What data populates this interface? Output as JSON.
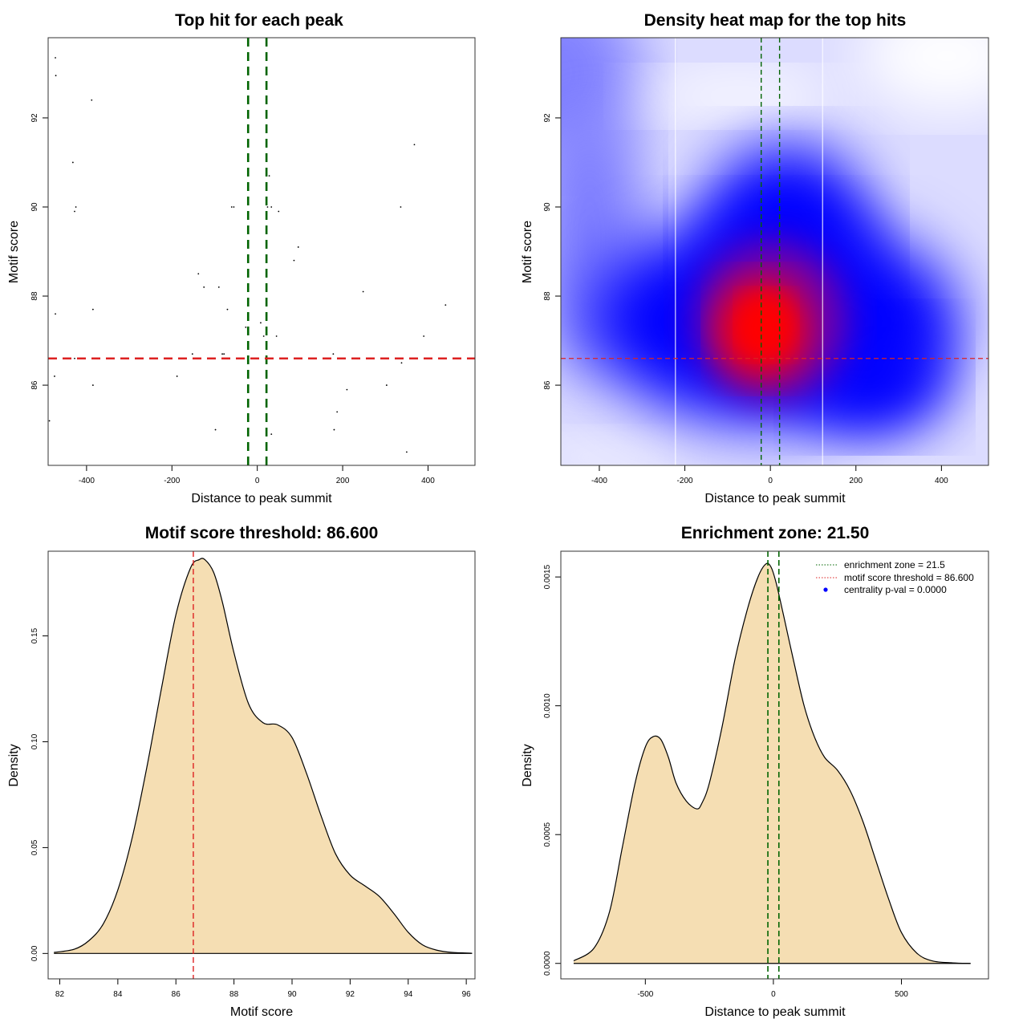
{
  "chart_data": [
    {
      "id": "scatter",
      "type": "scatter",
      "title": "Top hit for each peak",
      "xlabel": "Distance to peak summit",
      "ylabel": "Motif score",
      "xlim": [
        -490,
        510
      ],
      "ylim": [
        84.2,
        93.8
      ],
      "xticks": [
        -400,
        -200,
        0,
        200,
        400
      ],
      "yticks": [
        86,
        88,
        90,
        92
      ],
      "grid": false,
      "enrichment_zone": 21.5,
      "threshold": 86.6,
      "zone_color": "#006400",
      "threshold_color": "#dd2222",
      "points": [
        [
          -473,
          93.35
        ],
        [
          -472,
          92.95
        ],
        [
          -388,
          92.4
        ],
        [
          -432,
          91.0
        ],
        [
          -428,
          89.9
        ],
        [
          -425,
          90.0
        ],
        [
          -473,
          87.6
        ],
        [
          -385,
          87.7
        ],
        [
          -428,
          86.6
        ],
        [
          -475,
          86.2
        ],
        [
          -385,
          86.0
        ],
        [
          -487,
          85.2
        ],
        [
          -138,
          88.5
        ],
        [
          -125,
          88.2
        ],
        [
          -90,
          88.2
        ],
        [
          -70,
          87.7
        ],
        [
          -27,
          87.3
        ],
        [
          -152,
          86.7
        ],
        [
          -82,
          86.7
        ],
        [
          -78,
          86.7
        ],
        [
          -188,
          86.2
        ],
        [
          -98,
          85.0
        ],
        [
          -60,
          90.0
        ],
        [
          -55,
          90.0
        ],
        [
          28,
          90.7
        ],
        [
          24,
          90.0
        ],
        [
          33,
          90.0
        ],
        [
          50,
          89.9
        ],
        [
          96,
          89.1
        ],
        [
          86,
          88.8
        ],
        [
          8,
          87.4
        ],
        [
          15,
          87.1
        ],
        [
          45,
          87.1
        ],
        [
          22,
          86.2
        ],
        [
          33,
          84.9
        ],
        [
          178,
          86.7
        ],
        [
          248,
          88.1
        ],
        [
          210,
          85.9
        ],
        [
          187,
          85.4
        ],
        [
          180,
          85.0
        ],
        [
          303,
          86.0
        ],
        [
          338,
          86.5
        ],
        [
          336,
          90.0
        ],
        [
          368,
          91.4
        ],
        [
          390,
          87.1
        ],
        [
          441,
          87.8
        ],
        [
          350,
          84.5
        ]
      ]
    },
    {
      "id": "heatmap",
      "type": "heatmap",
      "title": "Density heat map for the top hits",
      "xlabel": "Distance to peak summit",
      "ylabel": "Motif score",
      "xlim": [
        -490,
        510
      ],
      "ylim": [
        84.2,
        93.8
      ],
      "xticks": [
        -400,
        -200,
        0,
        200,
        400
      ],
      "yticks": [
        86,
        88,
        90,
        92
      ],
      "enrichment_zone": 21.5,
      "threshold": 86.6,
      "white_lines_x": [
        -222,
        122
      ],
      "colormap": [
        "#ffffff",
        "#0000ff",
        "#ff0000"
      ],
      "peak": {
        "x": -25,
        "y": 87.3
      }
    },
    {
      "id": "score-density",
      "type": "area",
      "title": "Motif score threshold: 86.600",
      "xlabel": "Motif score",
      "ylabel": "Density",
      "xlim": [
        81.6,
        96.3
      ],
      "ylim": [
        -0.012,
        0.19
      ],
      "xticks": [
        82,
        84,
        86,
        88,
        90,
        92,
        94,
        96
      ],
      "yticks": [
        0.0,
        0.05,
        0.1,
        0.15
      ],
      "ytick_labels": [
        "0.00",
        "0.05",
        "0.10",
        "0.15"
      ],
      "fill_color": "#f5deb3",
      "threshold": 86.6,
      "threshold_color": "#dd2222",
      "x": [
        81.8,
        82.5,
        83.0,
        83.5,
        84.0,
        84.5,
        85.0,
        85.5,
        86.0,
        86.5,
        86.8,
        87.0,
        87.3,
        87.6,
        88.0,
        88.5,
        89.0,
        89.5,
        90.0,
        90.5,
        91.0,
        91.5,
        92.0,
        92.5,
        93.0,
        93.5,
        94.0,
        94.5,
        95.0,
        95.5,
        96.2
      ],
      "y": [
        0.0005,
        0.002,
        0.006,
        0.014,
        0.03,
        0.055,
        0.088,
        0.125,
        0.16,
        0.182,
        0.186,
        0.186,
        0.18,
        0.166,
        0.142,
        0.118,
        0.109,
        0.108,
        0.102,
        0.085,
        0.065,
        0.047,
        0.037,
        0.032,
        0.027,
        0.019,
        0.01,
        0.004,
        0.0015,
        0.0005,
        0.0001
      ]
    },
    {
      "id": "distance-density",
      "type": "area",
      "title": "Enrichment zone: 21.50",
      "xlabel": "Distance to peak summit",
      "ylabel": "Density",
      "xlim": [
        -830,
        840
      ],
      "ylim": [
        -6e-05,
        0.0016
      ],
      "xticks": [
        -500,
        0,
        500
      ],
      "yticks": [
        0.0,
        0.0005,
        0.001,
        0.0015
      ],
      "ytick_labels": [
        "0.0000",
        "0.0005",
        "0.0010",
        "0.0015"
      ],
      "fill_color": "#f5deb3",
      "enrichment_zone": 21.5,
      "zone_color": "#006400",
      "x": [
        -780,
        -700,
        -640,
        -590,
        -540,
        -500,
        -470,
        -440,
        -410,
        -380,
        -340,
        -300,
        -280,
        -250,
        -200,
        -150,
        -100,
        -60,
        -30,
        -10,
        10,
        40,
        80,
        120,
        160,
        200,
        250,
        300,
        350,
        400,
        450,
        500,
        560,
        620,
        700,
        770
      ],
      "y": [
        1e-05,
        6e-05,
        0.0002,
        0.00045,
        0.0007,
        0.00084,
        0.00088,
        0.00087,
        0.0008,
        0.0007,
        0.00063,
        0.0006,
        0.00062,
        0.0007,
        0.00092,
        0.00118,
        0.00138,
        0.0015,
        0.00155,
        0.00154,
        0.00148,
        0.00135,
        0.00117,
        0.001,
        0.00088,
        0.0008,
        0.00075,
        0.00067,
        0.00055,
        0.0004,
        0.00025,
        0.00012,
        4e-05,
        1e-05,
        2e-06,
        0.0
      ],
      "legend": {
        "position": "top-right",
        "entries": [
          {
            "label": "enrichment zone = 21.5",
            "style": "dotted-line",
            "color": "#006400"
          },
          {
            "label": "motif score threshold = 86.600",
            "style": "dotted-line",
            "color": "#dd2222"
          },
          {
            "label": "centrality p-val = 0.0000",
            "style": "dot",
            "color": "#0000ff"
          }
        ]
      }
    }
  ]
}
